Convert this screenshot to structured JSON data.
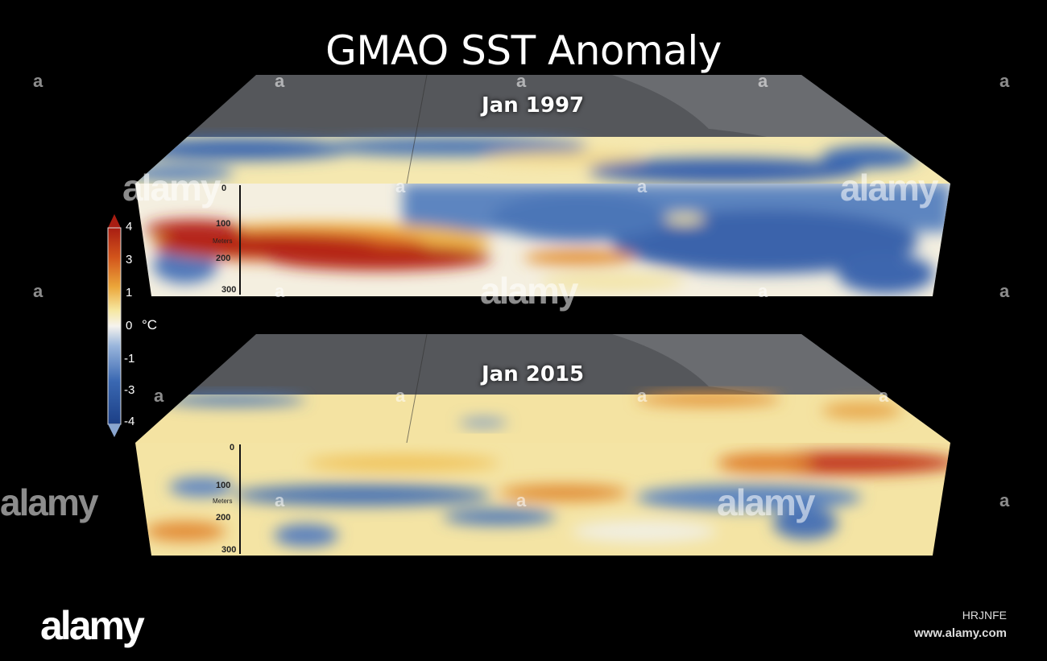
{
  "title": "GMAO SST Anomaly",
  "panels": [
    {
      "label": "Jan  1997",
      "depth_ticks": [
        "0",
        "100",
        "200",
        "300"
      ],
      "depth_unit": "Meters"
    },
    {
      "label": "Jan  2015",
      "depth_ticks": [
        "0",
        "100",
        "200",
        "300"
      ],
      "depth_unit": "Meters"
    }
  ],
  "colorbar": {
    "labels": [
      "4",
      "3",
      "1",
      "0",
      "-1",
      "-3",
      "-4"
    ],
    "unit": "°C",
    "colors": {
      "warm": "#b01c10",
      "neutral": "#f4f0d8",
      "cool": "#2b5aa8"
    }
  },
  "watermark": {
    "logo": "alamy",
    "small_mark": "a",
    "image_id": "HRJNFE",
    "url": "www.alamy.com"
  }
}
